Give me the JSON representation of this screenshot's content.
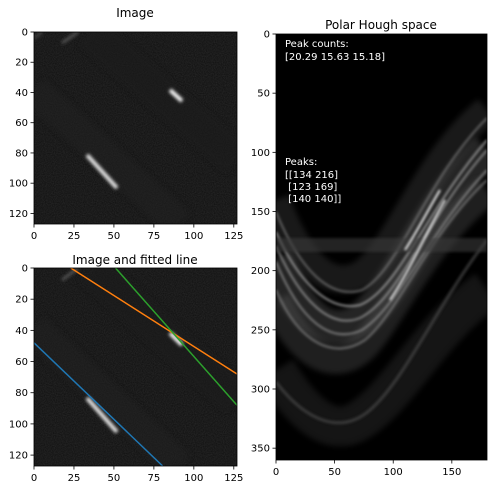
{
  "chart_data": [
    {
      "type": "heatmap",
      "title": "Image",
      "xticks": [
        "0",
        "25",
        "50",
        "75",
        "100",
        "125"
      ],
      "yticks": [
        "0",
        "20",
        "40",
        "60",
        "80",
        "100",
        "120"
      ],
      "xlim": [
        0,
        127
      ],
      "ylim": [
        127,
        0
      ],
      "colormap": "gray",
      "grid": false
    },
    {
      "type": "heatmap",
      "title": "Image and fitted line",
      "xticks": [
        "0",
        "25",
        "50",
        "75",
        "100",
        "125"
      ],
      "yticks": [
        "0",
        "20",
        "40",
        "60",
        "80",
        "100",
        "120"
      ],
      "xlim": [
        0,
        127
      ],
      "ylim": [
        127,
        0
      ],
      "colormap": "gray",
      "grid": false,
      "fitted_lines": [
        {
          "color": "#1f77b4",
          "x": [
            0,
            80.5
          ],
          "y": [
            48,
            127
          ]
        },
        {
          "color": "#ff7f0e",
          "x": [
            23,
            127
          ],
          "y": [
            0,
            68
          ]
        },
        {
          "color": "#2ca02c",
          "x": [
            51,
            127
          ],
          "y": [
            0,
            88
          ]
        }
      ]
    },
    {
      "type": "heatmap",
      "title": "Polar Hough space",
      "xticks": [
        "0",
        "50",
        "100",
        "150"
      ],
      "yticks": [
        "0",
        "50",
        "100",
        "150",
        "200",
        "250",
        "300",
        "350"
      ],
      "xlim": [
        0,
        180
      ],
      "ylim": [
        360,
        0
      ],
      "colormap": "gray",
      "grid": false,
      "annotations": {
        "counts_label": "Peak counts:",
        "counts_value": "[20.29 15.63 15.18]",
        "peaks_label": "Peaks:",
        "peaks_rows": [
          "[[134 216]",
          " [123 169]",
          " [140 140]]"
        ]
      }
    }
  ]
}
